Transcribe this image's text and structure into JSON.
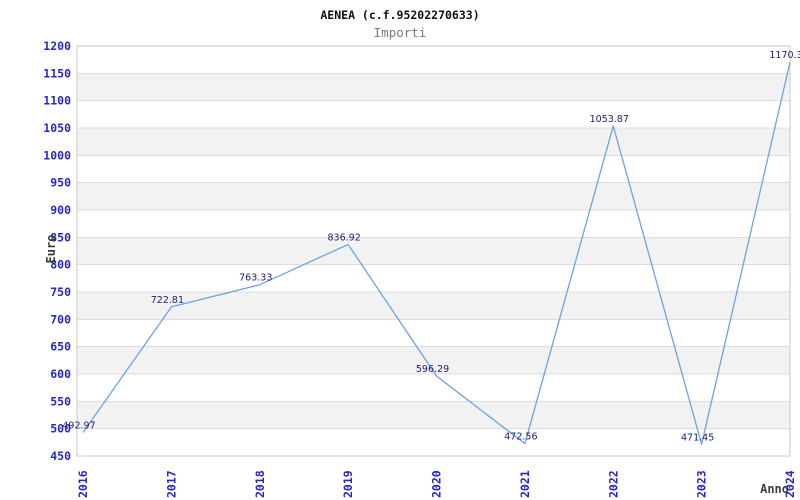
{
  "header": {
    "title": "AENEA (c.f.95202270633)",
    "subtitle": "Importi"
  },
  "axes": {
    "y_title": "Euro",
    "x_title": "Anno"
  },
  "chart_data": {
    "type": "line",
    "title": "AENEA (c.f.95202270633)",
    "subtitle": "Importi",
    "xlabel": "Anno",
    "ylabel": "Euro",
    "categories": [
      "2016",
      "2017",
      "2018",
      "2019",
      "2020",
      "2021",
      "2022",
      "2023",
      "2024"
    ],
    "series": [
      {
        "name": "Importi",
        "values": [
          492.97,
          722.81,
          763.33,
          836.92,
          596.29,
          472.56,
          1053.87,
          471.45,
          1170.3
        ]
      }
    ],
    "point_labels": [
      "492.97",
      "722.81",
      "763.33",
      "836.92",
      "596.29",
      "472.56",
      "1053.87",
      "471.45",
      "1170.3"
    ],
    "ylim": [
      450,
      1200
    ],
    "y_tick_step": 50,
    "y_tick_labels": [
      "450",
      "500",
      "550",
      "600",
      "650",
      "700",
      "750",
      "800",
      "850",
      "900",
      "950",
      "1000",
      "1050",
      "1100",
      "1150",
      "1200"
    ],
    "grid": "horizontal-with-alternating-bands",
    "legend": "none",
    "x_tick_rotation": -90,
    "colors": {
      "line": "#6ba3e4",
      "tick_labels": "#2626cc",
      "point_labels": "#1c1c6e",
      "band": "#f2f2f2",
      "gridline": "#dcdcdc",
      "border": "#c9c9c9",
      "title": "#111111",
      "subtitle": "#7a7a7a",
      "axis_titles": "#3c3c3c"
    }
  }
}
